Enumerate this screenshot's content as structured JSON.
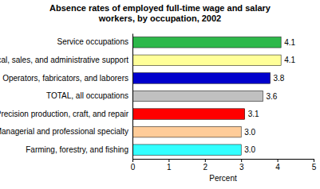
{
  "chart_data": {
    "type": "bar",
    "orientation": "horizontal",
    "title": "Absence rates of employed full-time wage and salary workers, by occupation,  2002",
    "categories": [
      "Service occupations",
      "Technical, sales, and administrative support",
      "Operators, fabricators, and laborers",
      "TOTAL, all occupations",
      "Precision production, craft, and repair",
      "Managerial and professional specialty",
      "Farming, forestry, and fishing"
    ],
    "values": [
      4.1,
      4.1,
      3.8,
      3.6,
      3.1,
      3.0,
      3.0
    ],
    "value_labels": [
      "4.1",
      "4.1",
      "3.8",
      "3.6",
      "3.1",
      "3.0",
      "3.0"
    ],
    "colors": [
      "#2db84a",
      "#ffff99",
      "#0000cc",
      "#c0c0c0",
      "#ff0000",
      "#ffcc99",
      "#33ffff"
    ],
    "x_label": "Percent",
    "xlim": [
      0,
      5
    ],
    "xticks": [
      0,
      1,
      2,
      3,
      4,
      5
    ],
    "grid": false,
    "data_labels": true
  }
}
